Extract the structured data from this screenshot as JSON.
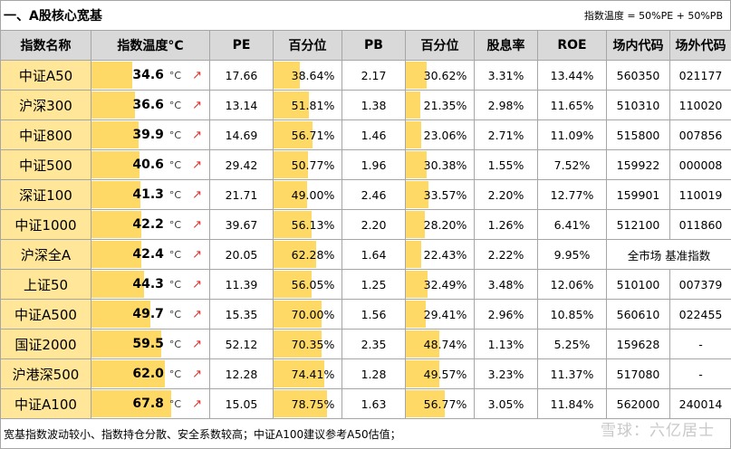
{
  "title": "一、A股核心宽基",
  "formula": "指数温度 = 50%PE + 50%PB",
  "headers": [
    "指数名称",
    "指数温度°C",
    "PE",
    "百分位",
    "PB",
    "百分位",
    "股息率",
    "ROE",
    "场内代码",
    "场外代码"
  ],
  "temp_unit": "°C",
  "arrow_glyph": "↗",
  "rows": [
    {
      "name": "中证A50",
      "temp": "34.6",
      "temp_value": 34.6,
      "pe": "17.66",
      "pe_pct": "38.64%",
      "pe_pct_value": 38.64,
      "pb": "2.17",
      "pb_pct": "30.62%",
      "pb_pct_value": 30.62,
      "div": "3.31%",
      "roe": "13.44%",
      "code_in": "560350",
      "code_out": "021177"
    },
    {
      "name": "沪深300",
      "temp": "36.6",
      "temp_value": 36.6,
      "pe": "13.14",
      "pe_pct": "51.81%",
      "pe_pct_value": 51.81,
      "pb": "1.38",
      "pb_pct": "21.35%",
      "pb_pct_value": 21.35,
      "div": "2.98%",
      "roe": "11.65%",
      "code_in": "510310",
      "code_out": "110020"
    },
    {
      "name": "中证800",
      "temp": "39.9",
      "temp_value": 39.9,
      "pe": "14.69",
      "pe_pct": "56.71%",
      "pe_pct_value": 56.71,
      "pb": "1.46",
      "pb_pct": "23.06%",
      "pb_pct_value": 23.06,
      "div": "2.71%",
      "roe": "11.09%",
      "code_in": "515800",
      "code_out": "007856"
    },
    {
      "name": "中证500",
      "temp": "40.6",
      "temp_value": 40.6,
      "pe": "29.42",
      "pe_pct": "50.77%",
      "pe_pct_value": 50.77,
      "pb": "1.96",
      "pb_pct": "30.38%",
      "pb_pct_value": 30.38,
      "div": "1.55%",
      "roe": "7.52%",
      "code_in": "159922",
      "code_out": "000008"
    },
    {
      "name": "深证100",
      "temp": "41.3",
      "temp_value": 41.3,
      "pe": "21.71",
      "pe_pct": "49.00%",
      "pe_pct_value": 49.0,
      "pb": "2.46",
      "pb_pct": "33.57%",
      "pb_pct_value": 33.57,
      "div": "2.20%",
      "roe": "12.77%",
      "code_in": "159901",
      "code_out": "110019"
    },
    {
      "name": "中证1000",
      "temp": "42.2",
      "temp_value": 42.2,
      "pe": "39.67",
      "pe_pct": "56.13%",
      "pe_pct_value": 56.13,
      "pb": "2.20",
      "pb_pct": "28.20%",
      "pb_pct_value": 28.2,
      "div": "1.26%",
      "roe": "6.41%",
      "code_in": "512100",
      "code_out": "011860"
    },
    {
      "name": "沪深全A",
      "temp": "42.4",
      "temp_value": 42.4,
      "pe": "20.05",
      "pe_pct": "62.28%",
      "pe_pct_value": 62.28,
      "pb": "1.64",
      "pb_pct": "22.43%",
      "pb_pct_value": 22.43,
      "div": "2.22%",
      "roe": "9.95%",
      "code_merged": "全市场 基准指数"
    },
    {
      "name": "上证50",
      "temp": "44.3",
      "temp_value": 44.3,
      "pe": "11.39",
      "pe_pct": "56.05%",
      "pe_pct_value": 56.05,
      "pb": "1.25",
      "pb_pct": "32.49%",
      "pb_pct_value": 32.49,
      "div": "3.48%",
      "roe": "12.06%",
      "code_in": "510100",
      "code_out": "007379"
    },
    {
      "name": "中证A500",
      "temp": "49.7",
      "temp_value": 49.7,
      "pe": "15.35",
      "pe_pct": "70.00%",
      "pe_pct_value": 70.0,
      "pb": "1.56",
      "pb_pct": "29.41%",
      "pb_pct_value": 29.41,
      "div": "2.96%",
      "roe": "10.85%",
      "code_in": "560610",
      "code_out": "022455"
    },
    {
      "name": "国证2000",
      "temp": "59.5",
      "temp_value": 59.5,
      "pe": "52.12",
      "pe_pct": "70.35%",
      "pe_pct_value": 70.35,
      "pb": "2.35",
      "pb_pct": "48.74%",
      "pb_pct_value": 48.74,
      "div": "1.13%",
      "roe": "5.25%",
      "code_in": "159628",
      "code_out": "-"
    },
    {
      "name": "沪港深500",
      "temp": "62.0",
      "temp_value": 62.0,
      "pe": "12.28",
      "pe_pct": "74.41%",
      "pe_pct_value": 74.41,
      "pb": "1.28",
      "pb_pct": "49.57%",
      "pb_pct_value": 49.57,
      "div": "3.23%",
      "roe": "11.37%",
      "code_in": "517080",
      "code_out": "-"
    },
    {
      "name": "中证A100",
      "temp": "67.8",
      "temp_value": 67.8,
      "pe": "15.05",
      "pe_pct": "78.75%",
      "pe_pct_value": 78.75,
      "pb": "1.63",
      "pb_pct": "56.77%",
      "pb_pct_value": 56.77,
      "div": "3.05%",
      "roe": "11.84%",
      "code_in": "562000",
      "code_out": "240014"
    }
  ],
  "footer": "宽基指数波动较小、指数持仓分散、安全系数较高；中证A100建议参考A50估值；",
  "watermark": "雪球：六亿居士",
  "colors": {
    "name_bg": "#ffe699",
    "bar": "#ffd966",
    "header_bg": "#d9d9d9",
    "arrow": "#e0302b"
  }
}
